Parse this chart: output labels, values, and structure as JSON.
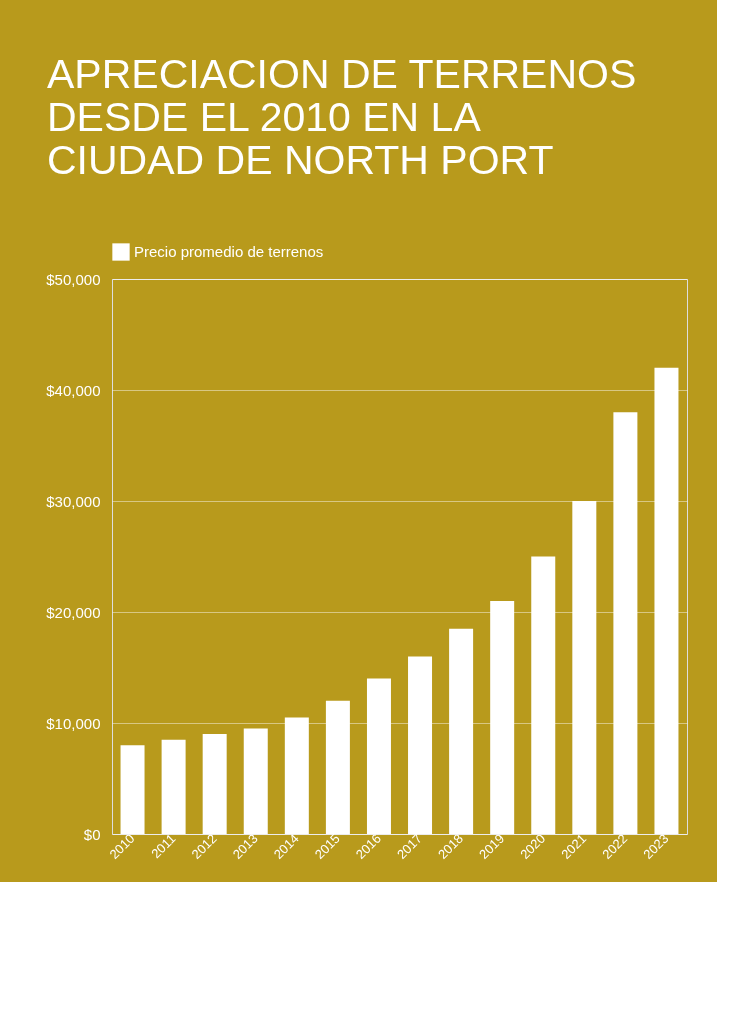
{
  "chart_data": {
    "type": "bar",
    "title": "APRECIACION DE TERRENOS DESDE EL 2010 EN LA CIUDAD DE NORTH PORT",
    "categories": [
      "2010",
      "2011",
      "2012",
      "2013",
      "2014",
      "2015",
      "2016",
      "2017",
      "2018",
      "2019",
      "2020",
      "2021",
      "2022",
      "2023"
    ],
    "series": [
      {
        "name": "Precio promedio de terrenos",
        "color": "#ffffff",
        "values": [
          8000,
          8500,
          9000,
          9500,
          10500,
          12000,
          14000,
          16000,
          18500,
          21000,
          25000,
          30000,
          38000,
          42000
        ]
      }
    ],
    "ylim": [
      0,
      50000
    ],
    "yticks": [
      {
        "value": 0,
        "label": "$0"
      },
      {
        "value": 10000,
        "label": "$10,000"
      },
      {
        "value": 20000,
        "label": "$20,000"
      },
      {
        "value": 30000,
        "label": "$30,000"
      },
      {
        "value": 40000,
        "label": "$40,000"
      },
      {
        "value": 50000,
        "label": "$50,000"
      }
    ],
    "grid": "y",
    "legend": "top"
  }
}
